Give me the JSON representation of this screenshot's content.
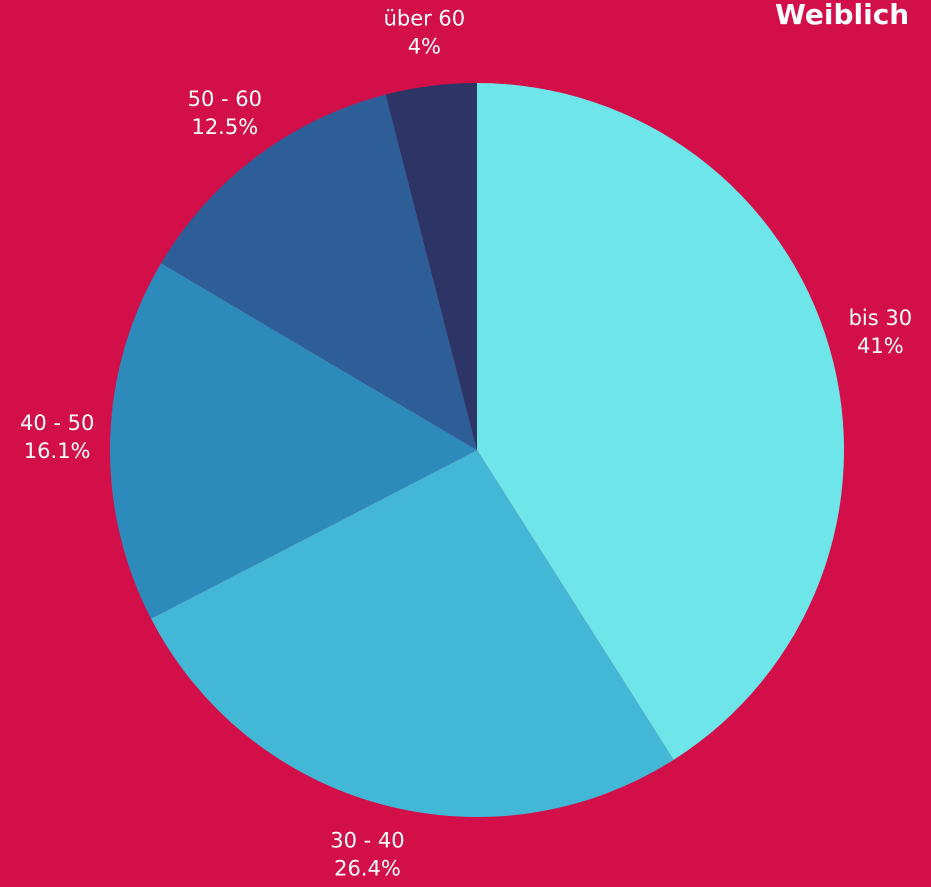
{
  "chart_data": {
    "type": "pie",
    "title": "Weiblich",
    "categories": [
      "bis 30",
      "30 - 40",
      "40 - 50",
      "50 - 60",
      "über 60"
    ],
    "values": [
      41,
      26.4,
      16.1,
      12.5,
      4
    ],
    "value_labels": [
      "41%",
      "26.4%",
      "16.1%",
      "12.5%",
      "4%"
    ],
    "colors": [
      "#6de5e9",
      "#43b7d6",
      "#2d8bbb",
      "#2e5e98",
      "#2d3466"
    ]
  }
}
